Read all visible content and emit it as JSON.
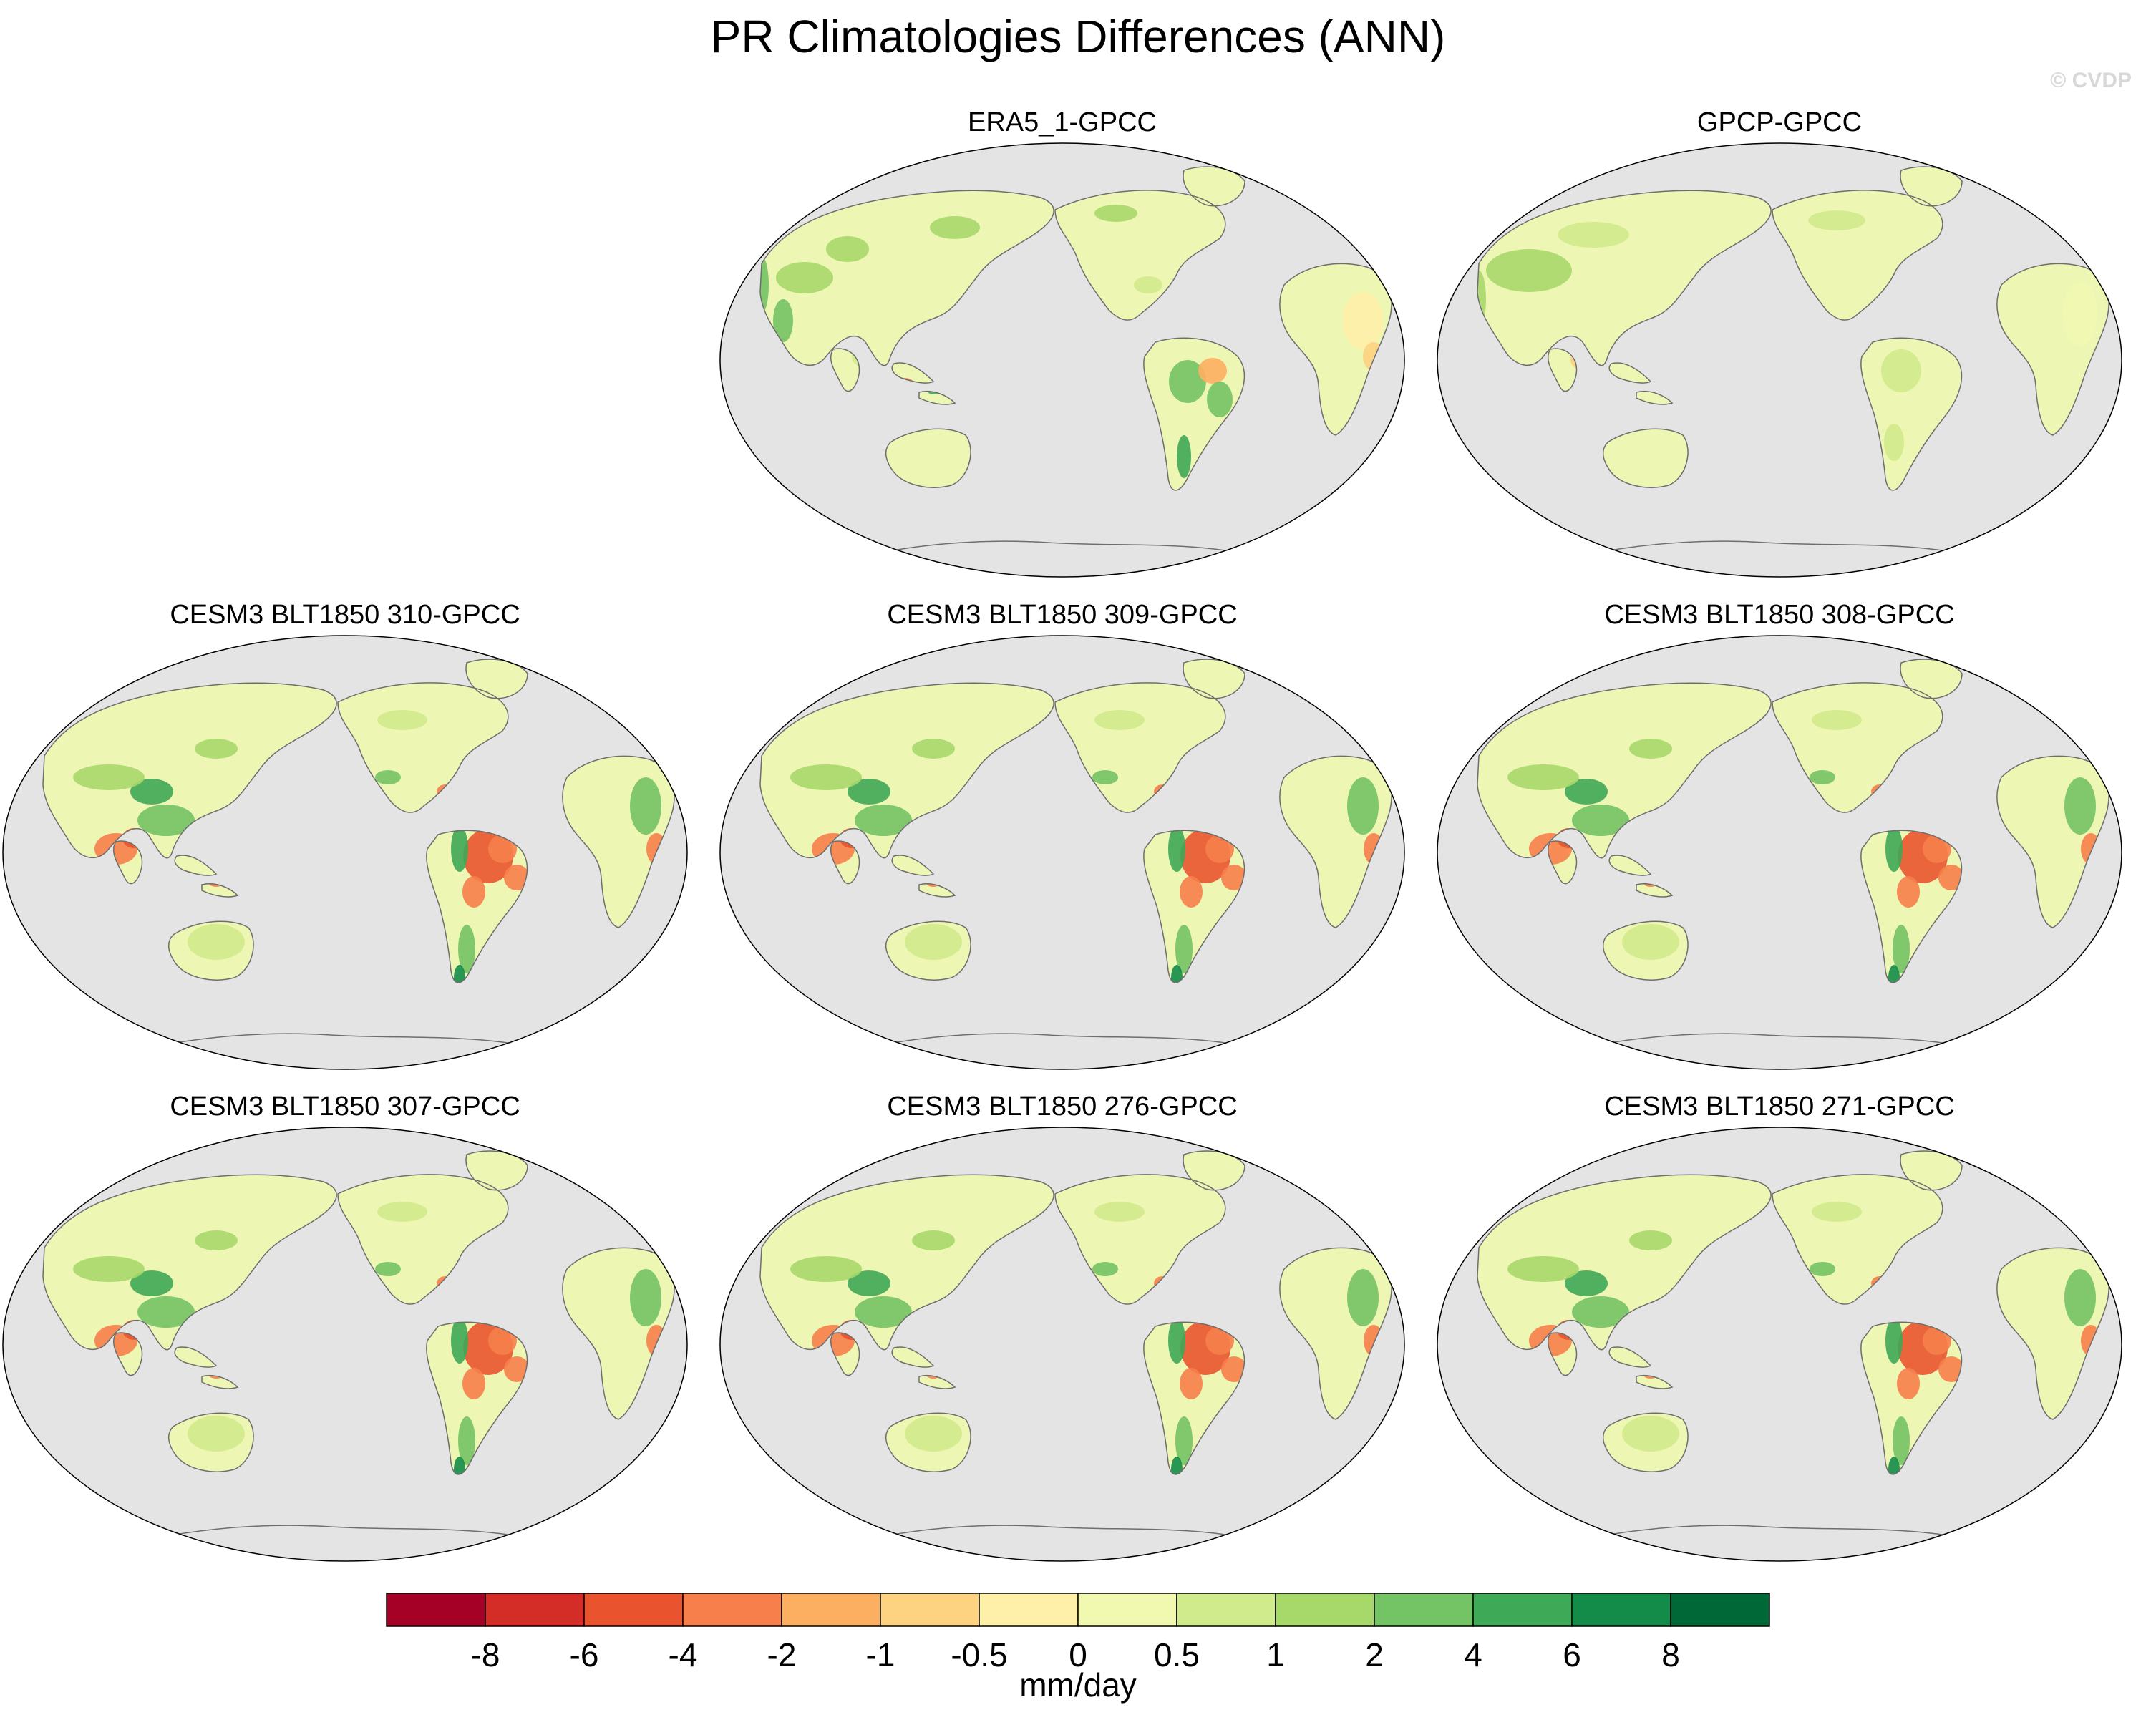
{
  "title": "PR Climatologies Differences (ANN)",
  "watermark": "© CVDP",
  "panels": [
    {
      "id": "era5",
      "title": "ERA5_1-GPCC",
      "pattern": "obs_era5"
    },
    {
      "id": "gpcp",
      "title": "GPCP-GPCC",
      "pattern": "obs_gpcp"
    },
    {
      "id": "m310",
      "title": "CESM3 BLT1850 310-GPCC",
      "pattern": "model"
    },
    {
      "id": "m309",
      "title": "CESM3 BLT1850 309-GPCC",
      "pattern": "model"
    },
    {
      "id": "m308",
      "title": "CESM3 BLT1850 308-GPCC",
      "pattern": "model"
    },
    {
      "id": "m307",
      "title": "CESM3 BLT1850 307-GPCC",
      "pattern": "model"
    },
    {
      "id": "m276",
      "title": "CESM3 BLT1850 276-GPCC",
      "pattern": "model"
    },
    {
      "id": "m271",
      "title": "CESM3 BLT1850 271-GPCC",
      "pattern": "model"
    }
  ],
  "colorbar": {
    "units": "mm/day",
    "labels": [
      "-8",
      "-6",
      "-4",
      "-2",
      "-1",
      "-0.5",
      "0",
      "0.5",
      "1",
      "2",
      "4",
      "6",
      "8"
    ],
    "colors": [
      "#a50026",
      "#d42c27",
      "#e9542f",
      "#f67f4b",
      "#fdaf61",
      "#fdd281",
      "#fef0a9",
      "#f1f8b0",
      "#d0eb8b",
      "#a7d86a",
      "#74c364",
      "#3ea957",
      "#138c49",
      "#006837"
    ]
  },
  "map_colors": {
    "ocean": "#e4e4e4",
    "land_base": "#eef6b4",
    "coast": "#6e6e6e"
  }
}
